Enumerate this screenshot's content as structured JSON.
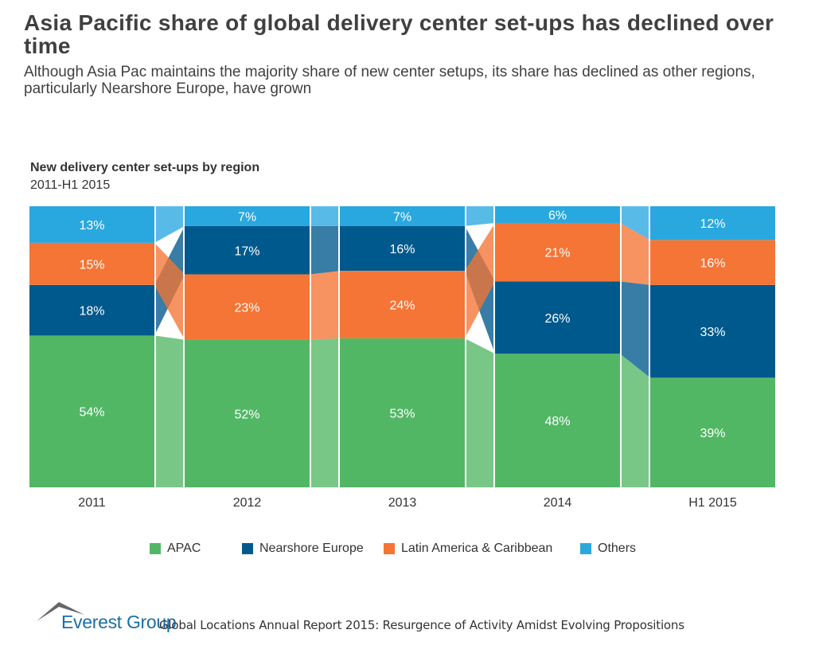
{
  "title": "Asia Pacific share of global delivery center set-ups has declined over time",
  "subtitle": "Although Asia Pac maintains the majority share of new center setups, its share has declined as other regions, particularly Nearshore Europe, have grown",
  "chart_data": {
    "type": "bar",
    "stacked": true,
    "percent": true,
    "title": "New delivery center set-ups by region",
    "subtitle": "2011-H1 2015",
    "categories": [
      "2011",
      "2012",
      "2013",
      "2014",
      "H1 2015"
    ],
    "series": [
      {
        "name": "APAC",
        "color": "#52b765",
        "values": [
          54,
          52,
          53,
          48,
          39
        ]
      },
      {
        "name": "Nearshore Europe",
        "color": "#00598c",
        "values": [
          18,
          17,
          16,
          26,
          33
        ]
      },
      {
        "name": "Latin America & Caribbean",
        "color": "#f47535",
        "values": [
          15,
          23,
          24,
          21,
          16
        ]
      },
      {
        "name": "Others",
        "color": "#29a8e0",
        "values": [
          13,
          7,
          7,
          6,
          12
        ]
      }
    ],
    "stack_order": "descending from bottom within each bar",
    "connectors": true,
    "legend": "bottom"
  },
  "footer": {
    "brand": "Everest Group",
    "source": "Global Locations Annual Report 2015: Resurgence of Activity Amidst Evolving Propositions"
  }
}
